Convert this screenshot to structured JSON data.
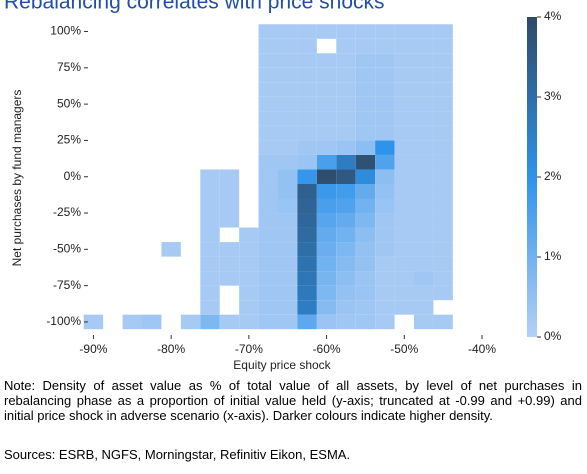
{
  "chart_data": {
    "type": "heatmap",
    "title": "Rebalancing correlates with price shocks",
    "xlabel": "Equity price shock",
    "ylabel": "Net purchases by fund managers",
    "x_edges": [
      -91.25,
      -88.75,
      -86.25,
      -83.75,
      -81.25,
      -78.75,
      -76.25,
      -73.75,
      -71.25,
      -68.75,
      -66.25,
      -63.75,
      -61.25,
      -58.75,
      -56.25,
      -53.75,
      -51.25,
      -48.75,
      -46.25,
      -43.75
    ],
    "y_edges": [
      -105,
      -95,
      -85,
      -75,
      -65,
      -55,
      -45,
      -35,
      -25,
      -15,
      -5,
      5,
      15,
      25,
      35,
      45,
      55,
      65,
      75,
      85,
      95,
      105
    ],
    "z": [
      [
        0.2,
        null,
        0.2,
        0.3,
        null,
        0.2,
        0.8,
        0.2,
        0.2,
        0.3,
        0.3,
        1.3,
        0.4,
        0.3,
        0.3,
        0.2,
        null,
        0.2,
        0.2
      ],
      [
        null,
        null,
        null,
        null,
        null,
        null,
        0.2,
        null,
        0.2,
        0.3,
        0.3,
        2.6,
        0.7,
        0.4,
        0.3,
        0.2,
        0.2,
        0.2,
        null
      ],
      [
        null,
        null,
        null,
        null,
        null,
        null,
        0.2,
        null,
        0.2,
        0.3,
        0.3,
        2.7,
        0.8,
        0.5,
        0.4,
        0.2,
        0.2,
        0.2,
        0.2
      ],
      [
        null,
        null,
        null,
        null,
        null,
        null,
        0.2,
        0.2,
        0.2,
        0.3,
        0.3,
        2.8,
        0.9,
        0.6,
        0.4,
        0.2,
        0.2,
        0.3,
        0.2
      ],
      [
        null,
        null,
        null,
        null,
        null,
        null,
        0.2,
        0.2,
        0.2,
        0.3,
        0.3,
        2.9,
        1.0,
        0.7,
        0.5,
        0.2,
        0.2,
        0.2,
        0.2
      ],
      [
        null,
        null,
        null,
        null,
        0.2,
        null,
        0.2,
        0.2,
        0.2,
        0.3,
        0.3,
        3.0,
        1.1,
        0.8,
        0.5,
        0.3,
        0.2,
        0.2,
        0.2
      ],
      [
        null,
        null,
        null,
        null,
        null,
        null,
        0.2,
        null,
        0.2,
        0.3,
        0.3,
        3.1,
        1.2,
        1.0,
        0.6,
        0.3,
        0.2,
        0.2,
        0.2
      ],
      [
        null,
        null,
        null,
        null,
        null,
        null,
        0.2,
        0.2,
        null,
        0.3,
        0.3,
        3.2,
        1.4,
        1.2,
        0.8,
        0.3,
        0.2,
        0.2,
        0.2
      ],
      [
        null,
        null,
        null,
        null,
        null,
        null,
        0.2,
        0.2,
        null,
        0.3,
        0.4,
        3.3,
        1.6,
        1.5,
        1.0,
        0.4,
        0.2,
        0.2,
        0.2
      ],
      [
        null,
        null,
        null,
        null,
        null,
        null,
        0.2,
        0.2,
        null,
        0.3,
        0.5,
        3.4,
        1.8,
        1.7,
        1.2,
        0.5,
        0.2,
        0.2,
        0.2
      ],
      [
        null,
        null,
        null,
        null,
        null,
        null,
        0.2,
        0.2,
        null,
        0.3,
        0.5,
        1.9,
        3.9,
        3.6,
        2.2,
        0.6,
        0.2,
        0.2,
        0.2
      ],
      [
        null,
        null,
        null,
        null,
        null,
        null,
        null,
        null,
        null,
        0.3,
        0.3,
        0.4,
        1.6,
        2.6,
        3.8,
        1.5,
        0.2,
        0.2,
        0.2
      ],
      [
        null,
        null,
        null,
        null,
        null,
        null,
        null,
        null,
        null,
        0.2,
        0.2,
        0.3,
        0.3,
        0.4,
        0.6,
        2.0,
        0.2,
        0.2,
        0.2
      ],
      [
        null,
        null,
        null,
        null,
        null,
        null,
        null,
        null,
        null,
        0.2,
        0.2,
        0.2,
        0.2,
        0.2,
        0.3,
        0.3,
        0.2,
        0.2,
        0.2
      ],
      [
        null,
        null,
        null,
        null,
        null,
        null,
        null,
        null,
        null,
        0.2,
        0.2,
        0.2,
        0.2,
        0.2,
        0.3,
        0.3,
        0.2,
        0.2,
        0.2
      ],
      [
        null,
        null,
        null,
        null,
        null,
        null,
        null,
        null,
        null,
        0.2,
        0.2,
        0.2,
        0.2,
        0.2,
        0.3,
        0.3,
        0.2,
        0.2,
        0.2
      ],
      [
        null,
        null,
        null,
        null,
        null,
        null,
        null,
        null,
        null,
        0.2,
        0.2,
        0.2,
        0.2,
        0.2,
        0.3,
        0.3,
        0.2,
        0.2,
        0.2
      ],
      [
        null,
        null,
        null,
        null,
        null,
        null,
        null,
        null,
        null,
        0.2,
        0.2,
        0.2,
        0.2,
        0.2,
        0.3,
        0.3,
        0.2,
        0.2,
        0.2
      ],
      [
        null,
        null,
        null,
        null,
        null,
        null,
        null,
        null,
        null,
        0.2,
        0.2,
        0.2,
        0.2,
        0.2,
        0.3,
        0.3,
        0.2,
        0.2,
        0.2
      ],
      [
        null,
        null,
        null,
        null,
        null,
        null,
        null,
        null,
        null,
        0.2,
        0.2,
        0.2,
        null,
        0.2,
        0.2,
        0.2,
        0.2,
        0.2,
        0.2
      ],
      [
        null,
        null,
        null,
        null,
        null,
        null,
        null,
        null,
        null,
        0.2,
        0.2,
        0.2,
        0.2,
        0.2,
        0.2,
        0.2,
        0.2,
        0.2,
        0.2
      ]
    ],
    "xlim": [
      -90.7,
      -40
    ],
    "ylim": [
      -109,
      110
    ],
    "xticks": [
      {
        "value": -90,
        "label": "-90%"
      },
      {
        "value": -80,
        "label": "-80%"
      },
      {
        "value": -70,
        "label": "-70%"
      },
      {
        "value": -60,
        "label": "-60%"
      },
      {
        "value": -50,
        "label": "-50%"
      },
      {
        "value": -40,
        "label": "-40%"
      }
    ],
    "yticks": [
      {
        "value": -100,
        "label": "-100%"
      },
      {
        "value": -75,
        "label": "-75%"
      },
      {
        "value": -50,
        "label": "-50%"
      },
      {
        "value": -25,
        "label": "-25%"
      },
      {
        "value": 0,
        "label": "0%"
      },
      {
        "value": 25,
        "label": "25%"
      },
      {
        "value": 50,
        "label": "50%"
      },
      {
        "value": 75,
        "label": "75%"
      },
      {
        "value": 100,
        "label": "100%"
      }
    ],
    "colorscale": [
      "#b4d0f5",
      "#2e93ea",
      "#2f4a66"
    ],
    "clim": [
      0,
      4
    ],
    "cticks": [
      {
        "value": 0,
        "label": "0%"
      },
      {
        "value": 1,
        "label": "1%"
      },
      {
        "value": 2,
        "label": "2%"
      },
      {
        "value": 3,
        "label": "3%"
      },
      {
        "value": 4,
        "label": "4%"
      }
    ],
    "note": "Note: Density of asset value as % of total value of all assets, by level of net purchases in rebalancing phase as a proportion of initial value held (y-axis; truncated at -0.99 and +0.99) and initial price shock in adverse scenario (x-axis). Darker colours indicate higher density.",
    "sources": "Sources: ESRB, NGFS, Morningstar, Refinitiv Eikon, ESMA."
  }
}
